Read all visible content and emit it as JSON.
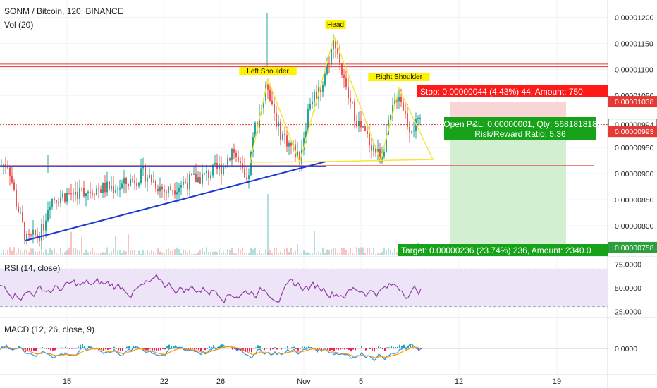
{
  "header": {
    "symbol": "SONM / Bitcoin, 120, BINANCE",
    "volume_indicator": "Vol (20)"
  },
  "chart_data": {
    "type": "candlestick",
    "price_axis": {
      "ticks": [
        {
          "label": "0.00001200",
          "value": 1.2e-05
        },
        {
          "label": "0.00001150",
          "value": 1.15e-05
        },
        {
          "label": "0.00001100",
          "value": 1.1e-05
        },
        {
          "label": "0.00001050",
          "value": 1.05e-05
        },
        {
          "label": "0.00000950",
          "value": 9.5e-06
        },
        {
          "label": "0.00000900",
          "value": 9e-06
        },
        {
          "label": "0.00000850",
          "value": 8.5e-06
        },
        {
          "label": "0.00000800",
          "value": 8e-06
        }
      ],
      "range": [
        7.43e-06,
        1.233e-05
      ]
    },
    "price_badges": [
      {
        "label": "0.00001038",
        "value": 1.038e-05,
        "color": "#e53935",
        "style": "filled"
      },
      {
        "label": "0.00000994",
        "value": 9.94e-06,
        "color": "#222222",
        "style": "outline"
      },
      {
        "label": "0.00000993",
        "value": 9.81e-06,
        "color": "#e53935",
        "style": "filled"
      },
      {
        "label": "0.00000758",
        "value": 7.58e-06,
        "color": "#2e9e3e",
        "style": "filled"
      }
    ],
    "time_axis": [
      "15",
      "22",
      "26",
      "Nov",
      "5",
      "12",
      "19"
    ],
    "patterns": [
      {
        "label": "Left Shoulder",
        "price": 1.08e-05
      },
      {
        "label": "Head",
        "price": 1.17e-05
      },
      {
        "label": "Right Shoulder",
        "price": 1.065e-05
      }
    ],
    "neckline_price": 9.15e-06,
    "resistance_prices": [
      1.11e-05,
      1.105e-05
    ],
    "support_price": 7.6e-06,
    "trade": {
      "stop_label": "Stop: 0.00000044 (4.43%) 44, Amount: 750",
      "pnl_label": "Open P&L: 0.00000001, Qty: 568181818",
      "ratio_label": "Risk/Reward Ratio: 5.36",
      "target_label": "Target: 0.00000236 (23.74%) 236, Amount: 2340.0",
      "entry_price": 9.94e-06,
      "stop_price": 1.038e-05,
      "target_price": 7.58e-06
    },
    "rsi": {
      "label": "RSI (14, close)",
      "ticks": [
        {
          "label": "75.0000",
          "value": 75
        },
        {
          "label": "50.0000",
          "value": 50
        },
        {
          "label": "25.0000",
          "value": 25
        }
      ],
      "band": [
        30,
        70
      ]
    },
    "macd": {
      "label": "MACD (12, 26, close, 9)",
      "ticks": [
        {
          "label": "0.0000",
          "value": 0
        }
      ]
    },
    "colors": {
      "up": "#26a69a",
      "down": "#ef5350",
      "trendline": "#1e3ad0",
      "pattern": "#f5e63a",
      "rsi": "#8e3ca6",
      "macd": "#2196f3",
      "signal": "#ff9800"
    }
  }
}
